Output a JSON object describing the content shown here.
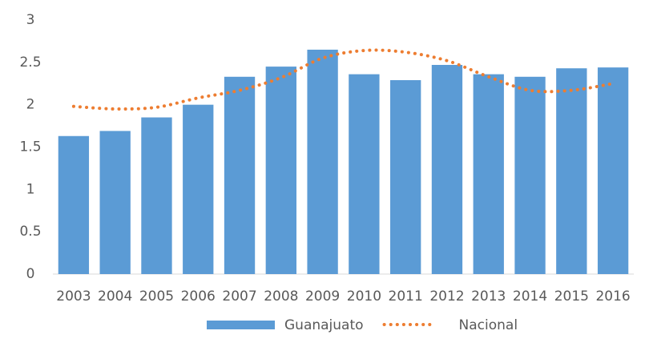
{
  "chart_data": {
    "type": "bar",
    "categories": [
      "2003",
      "2004",
      "2005",
      "2006",
      "2007",
      "2008",
      "2009",
      "2010",
      "2011",
      "2012",
      "2013",
      "2014",
      "2015",
      "2016"
    ],
    "series": [
      {
        "name": "Guanajuato",
        "type": "bar",
        "color": "#5b9bd5",
        "values": [
          1.63,
          1.69,
          1.85,
          2.0,
          2.33,
          2.45,
          2.65,
          2.36,
          2.29,
          2.47,
          2.36,
          2.33,
          2.43,
          2.44
        ]
      },
      {
        "name": "Nacional",
        "type": "line",
        "color": "#ed7d31",
        "values": [
          1.98,
          1.95,
          1.97,
          2.08,
          2.17,
          2.32,
          2.55,
          2.64,
          2.62,
          2.52,
          2.33,
          2.17,
          2.17,
          2.25
        ]
      }
    ],
    "ylim": [
      0,
      3
    ],
    "yticks": [
      0,
      0.5,
      1,
      1.5,
      2,
      2.5,
      3
    ],
    "legend": "bottom"
  }
}
